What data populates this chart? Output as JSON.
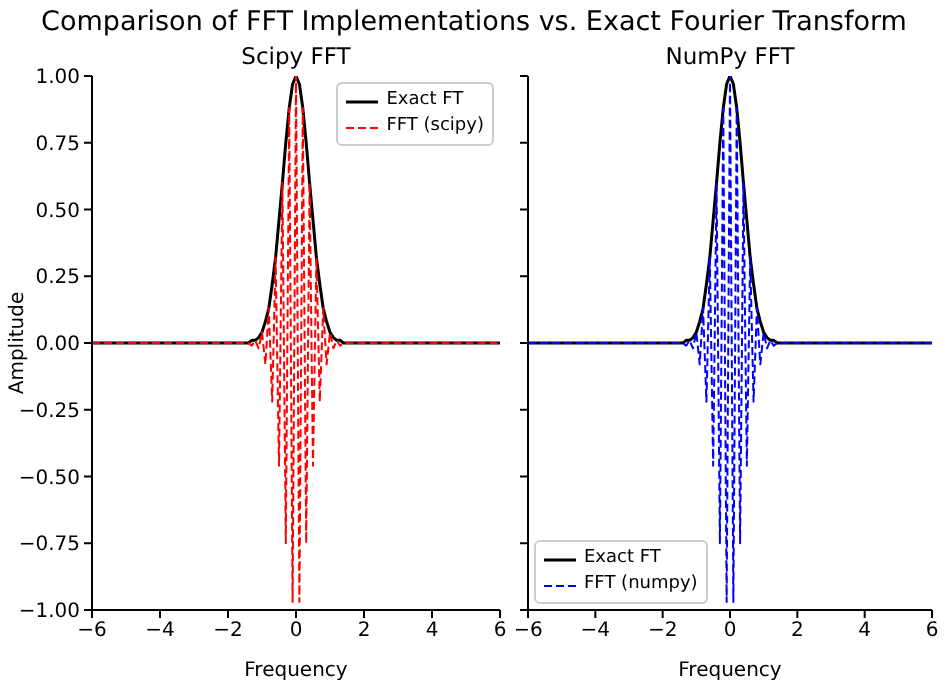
{
  "chart_data": [
    {
      "type": "line",
      "title": "Scipy FFT",
      "annotations": [
        "Comparison of FFT Implementations vs. Exact Fourier Transform"
      ],
      "xlabel": "Frequency",
      "ylabel": "Amplitude",
      "xlim": [
        -6,
        6
      ],
      "xticks": [
        -6,
        -4,
        -2,
        0,
        2,
        4,
        6
      ],
      "ylim": [
        -1,
        1
      ],
      "yticks": [
        {
          "value": -1,
          "label": "−1.00"
        },
        {
          "value": -0.75,
          "label": "−0.75"
        },
        {
          "value": -0.5,
          "label": "−0.50"
        },
        {
          "value": -0.25,
          "label": "−0.25"
        },
        {
          "value": 0,
          "label": "0.00"
        },
        {
          "value": 0.25,
          "label": "0.25"
        },
        {
          "value": 0.5,
          "label": "0.50"
        },
        {
          "value": 0.75,
          "label": "0.75"
        },
        {
          "value": 1,
          "label": "1.00"
        }
      ],
      "grid": false,
      "legend": "top right",
      "marker": "none",
      "series": [
        {
          "name": "Exact FT",
          "color": "#000000",
          "line_style": "solid",
          "x": [
            -6,
            -1.5,
            -1.4,
            -1.3,
            -1.2,
            -1.1,
            -1.0,
            -0.9,
            -0.8,
            -0.7,
            -0.6,
            -0.5,
            -0.4,
            -0.3,
            -0.2,
            -0.1,
            0,
            0.1,
            0.2,
            0.3,
            0.4,
            0.5,
            0.6,
            0.7,
            0.8,
            0.9,
            1.0,
            1.1,
            1.2,
            1.3,
            1.4,
            1.5,
            6
          ],
          "values": [
            0,
            0,
            0,
            0.01,
            0.01,
            0.02,
            0.04,
            0.08,
            0.13,
            0.22,
            0.32,
            0.46,
            0.6,
            0.75,
            0.88,
            0.97,
            1,
            0.97,
            0.88,
            0.75,
            0.6,
            0.46,
            0.32,
            0.22,
            0.13,
            0.08,
            0.04,
            0.02,
            0.01,
            0.01,
            0,
            0,
            0
          ]
        },
        {
          "name": "FFT (scipy)",
          "color": "#ff0000",
          "line_style": "dashed",
          "x": [
            -6,
            -1.5,
            -1.4,
            -1.3,
            -1.2,
            -1.1,
            -1.0,
            -0.9,
            -0.8,
            -0.7,
            -0.6,
            -0.5,
            -0.4,
            -0.3,
            -0.2,
            -0.1,
            0,
            0.1,
            0.2,
            0.3,
            0.4,
            0.5,
            0.6,
            0.7,
            0.8,
            0.9,
            1.0,
            1.1,
            1.2,
            1.3,
            1.4,
            1.5,
            6
          ],
          "values": [
            0,
            0,
            0,
            -0.01,
            0.01,
            -0.02,
            0.04,
            -0.08,
            0.13,
            -0.22,
            0.32,
            -0.46,
            0.6,
            -0.75,
            0.88,
            -0.97,
            1,
            -0.97,
            0.88,
            -0.75,
            0.6,
            -0.46,
            0.32,
            -0.22,
            0.13,
            -0.08,
            0.04,
            -0.02,
            0.01,
            -0.01,
            0,
            0,
            0
          ]
        }
      ]
    },
    {
      "type": "line",
      "title": "NumPy FFT",
      "xlabel": "Frequency",
      "xlim": [
        -6,
        6
      ],
      "xticks": [
        -6,
        -4,
        -2,
        0,
        2,
        4,
        6
      ],
      "ylim": [
        -1,
        1
      ],
      "yticks": [
        -1,
        -0.75,
        -0.5,
        -0.25,
        0,
        0.25,
        0.5,
        0.75,
        1
      ],
      "tick_labels": "x",
      "grid": false,
      "legend": "bottom left",
      "marker": "none",
      "series": [
        {
          "name": "Exact FT",
          "color": "#000000",
          "line_style": "solid",
          "x": [
            -6,
            -1.5,
            -1.4,
            -1.3,
            -1.2,
            -1.1,
            -1.0,
            -0.9,
            -0.8,
            -0.7,
            -0.6,
            -0.5,
            -0.4,
            -0.3,
            -0.2,
            -0.1,
            0,
            0.1,
            0.2,
            0.3,
            0.4,
            0.5,
            0.6,
            0.7,
            0.8,
            0.9,
            1.0,
            1.1,
            1.2,
            1.3,
            1.4,
            1.5,
            6
          ],
          "values": [
            0,
            0,
            0,
            0.01,
            0.01,
            0.02,
            0.04,
            0.08,
            0.13,
            0.22,
            0.32,
            0.46,
            0.6,
            0.75,
            0.88,
            0.97,
            1,
            0.97,
            0.88,
            0.75,
            0.6,
            0.46,
            0.32,
            0.22,
            0.13,
            0.08,
            0.04,
            0.02,
            0.01,
            0.01,
            0,
            0,
            0
          ]
        },
        {
          "name": "FFT (numpy)",
          "color": "#0000ff",
          "line_style": "dashed",
          "x": [
            -6,
            -1.5,
            -1.4,
            -1.3,
            -1.2,
            -1.1,
            -1.0,
            -0.9,
            -0.8,
            -0.7,
            -0.6,
            -0.5,
            -0.4,
            -0.3,
            -0.2,
            -0.1,
            0,
            0.1,
            0.2,
            0.3,
            0.4,
            0.5,
            0.6,
            0.7,
            0.8,
            0.9,
            1.0,
            1.1,
            1.2,
            1.3,
            1.4,
            1.5,
            6
          ],
          "values": [
            0,
            0,
            0,
            -0.01,
            0.01,
            -0.02,
            0.04,
            -0.08,
            0.13,
            -0.22,
            0.32,
            -0.46,
            0.6,
            -0.75,
            0.88,
            -0.97,
            1,
            -0.97,
            0.88,
            -0.75,
            0.6,
            -0.46,
            0.32,
            -0.22,
            0.13,
            -0.08,
            0.04,
            -0.02,
            0.01,
            -0.01,
            0,
            0,
            0
          ]
        }
      ]
    }
  ]
}
